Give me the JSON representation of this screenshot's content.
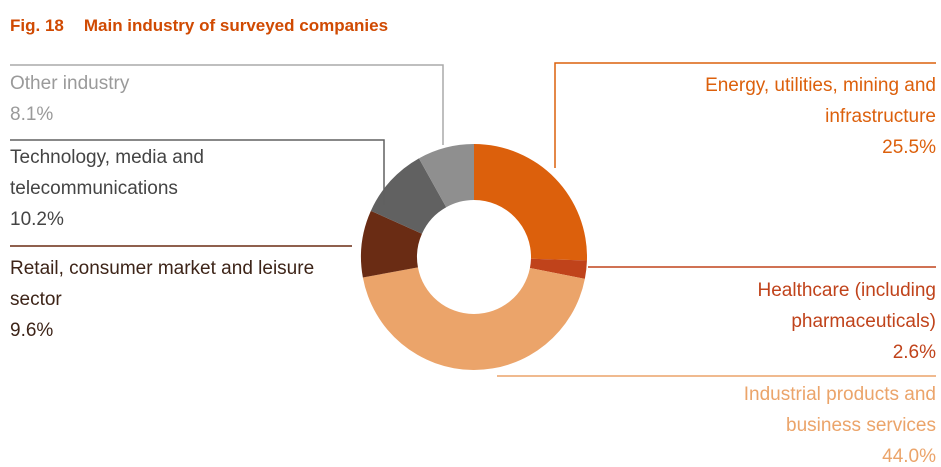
{
  "chart_data": {
    "type": "donut",
    "figure_label": "Fig. 18",
    "title": "Main industry of surveyed companies",
    "categories": [
      "Energy, utilities, mining and infrastructure",
      "Healthcare (including pharmaceuticals)",
      "Industrial products and business services",
      "Retail, consumer market and leisure sector",
      "Technology, media and telecommunications",
      "Other industry"
    ],
    "values": [
      25.5,
      2.6,
      44.0,
      9.6,
      10.2,
      8.1
    ],
    "value_labels": [
      "25.5%",
      "2.6%",
      "44.0%",
      "9.6%",
      "10.2%",
      "8.1%"
    ],
    "colors": [
      "#dc600c",
      "#c0431b",
      "#eba46a",
      "#6a2c14",
      "#616161",
      "#8f8f8f"
    ]
  }
}
